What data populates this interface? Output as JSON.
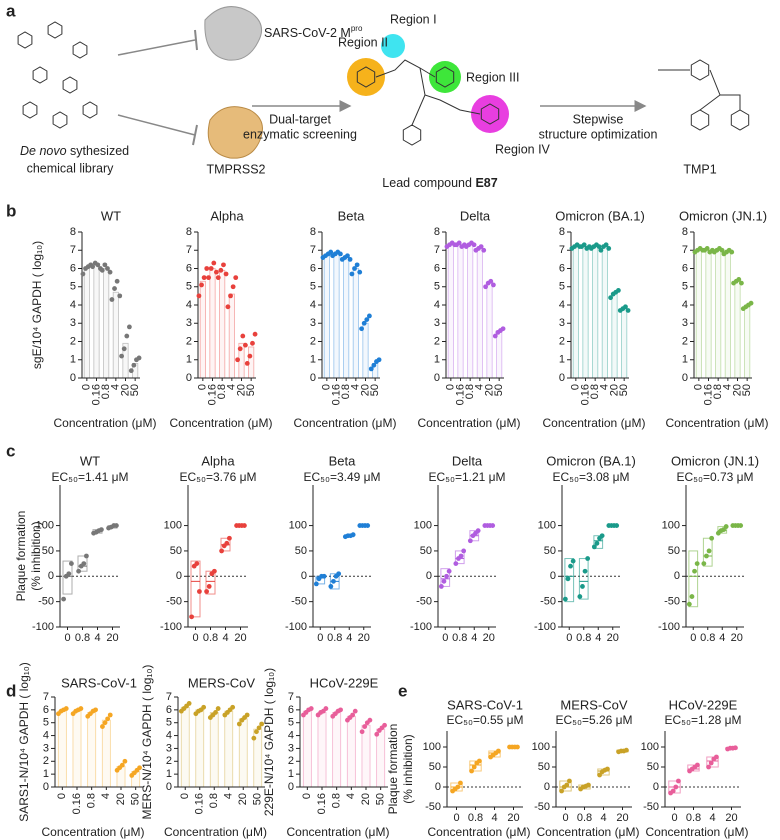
{
  "panel_labels": [
    "a",
    "b",
    "c",
    "d",
    "e"
  ],
  "scheme": {
    "library": [
      "De novo",
      "sythesized",
      "chemical library"
    ],
    "target_1": [
      "SARS-CoV-2 M",
      "pro"
    ],
    "target_2": "TMPRSS2",
    "screening": [
      "Dual-target",
      "enzymatic screening"
    ],
    "regions": [
      "Region I",
      "Region II",
      "Region III",
      "Region IV"
    ],
    "lead": [
      "Lead compound",
      "E87"
    ],
    "optimization": [
      "Stepwise",
      "structure optimization"
    ],
    "product": "TMP1"
  },
  "chart_data": [
    {
      "type": "bar",
      "title": "WT",
      "ylabel": "sgE/10⁴ GAPDH ( log₁₀)",
      "xlabel": "Concentration (μM)",
      "color": "#777777",
      "categories": [
        "0",
        "0.16",
        "0.8",
        "4",
        "20",
        "50"
      ],
      "values": [
        6.0,
        6.2,
        6.0,
        4.7,
        1.9,
        0.8
      ],
      "points": [
        [
          5.7,
          6.0,
          6.1,
          6.2
        ],
        [
          6.1,
          6.3,
          6.2,
          6.0
        ],
        [
          5.9,
          6.2,
          6.0,
          5.8
        ],
        [
          4.3,
          4.9,
          5.3,
          4.5
        ],
        [
          1.2,
          1.6,
          2.3,
          2.8
        ],
        [
          0.4,
          0.7,
          1.0,
          1.1
        ]
      ],
      "ylim": [
        0,
        8
      ],
      "yticks": [
        0,
        1,
        2,
        3,
        4,
        5,
        6,
        7,
        8
      ]
    },
    {
      "type": "bar",
      "title": "Alpha",
      "xlabel": "Concentration (μM)",
      "color": "#e8413c",
      "categories": [
        "0",
        "0.16",
        "0.8",
        "4",
        "20",
        "50"
      ],
      "values": [
        5.3,
        6.0,
        5.9,
        4.6,
        1.9,
        1.7
      ],
      "points": [
        [
          4.5,
          5.1,
          5.5,
          6.0
        ],
        [
          5.5,
          6.0,
          6.3,
          5.8
        ],
        [
          5.5,
          5.9,
          6.2,
          5.7
        ],
        [
          3.9,
          4.5,
          5.0,
          5.5
        ],
        [
          1.0,
          1.6,
          2.3,
          1.8
        ],
        [
          0.8,
          1.2,
          1.9,
          2.4
        ]
      ],
      "ylim": [
        0,
        8
      ],
      "yticks": [
        0,
        1,
        2,
        3,
        4,
        5,
        6,
        7,
        8
      ]
    },
    {
      "type": "bar",
      "title": "Beta",
      "xlabel": "Concentration (μM)",
      "color": "#1f7fd6",
      "categories": [
        "0",
        "0.16",
        "0.8",
        "4",
        "20",
        "50"
      ],
      "values": [
        6.7,
        6.8,
        6.6,
        6.0,
        3.0,
        0.8
      ],
      "points": [
        [
          6.6,
          6.7,
          6.8,
          6.9
        ],
        [
          6.7,
          6.8,
          6.9,
          6.8
        ],
        [
          6.5,
          6.6,
          6.7,
          6.5
        ],
        [
          5.7,
          6.0,
          6.2,
          5.8
        ],
        [
          2.7,
          3.0,
          3.2,
          3.4
        ],
        [
          0.5,
          0.7,
          0.9,
          1.0
        ]
      ],
      "ylim": [
        0,
        8
      ],
      "yticks": [
        0,
        1,
        2,
        3,
        4,
        5,
        6,
        7,
        8
      ]
    },
    {
      "type": "bar",
      "title": "Delta",
      "xlabel": "Concentration (μM)",
      "color": "#b05de0",
      "categories": [
        "0",
        "0.16",
        "0.8",
        "4",
        "20",
        "50"
      ],
      "values": [
        7.3,
        7.3,
        7.3,
        7.1,
        5.2,
        2.5
      ],
      "points": [
        [
          7.2,
          7.3,
          7.4,
          7.3
        ],
        [
          7.3,
          7.4,
          7.2,
          7.3
        ],
        [
          7.2,
          7.3,
          7.4,
          7.3
        ],
        [
          7.0,
          7.1,
          7.2,
          7.0
        ],
        [
          5.0,
          5.2,
          5.3,
          5.1
        ],
        [
          2.3,
          2.5,
          2.6,
          2.7
        ]
      ],
      "ylim": [
        0,
        8
      ],
      "yticks": [
        0,
        1,
        2,
        3,
        4,
        5,
        6,
        7,
        8
      ]
    },
    {
      "type": "bar",
      "title": "Omicron (BA.1)",
      "xlabel": "Concentration (μM)",
      "color": "#1a9a8a",
      "categories": [
        "0",
        "0.16",
        "0.8",
        "4",
        "20",
        "50"
      ],
      "values": [
        7.2,
        7.2,
        7.2,
        7.2,
        4.6,
        3.8
      ],
      "points": [
        [
          7.1,
          7.2,
          7.3,
          7.2
        ],
        [
          7.2,
          7.3,
          7.1,
          7.2
        ],
        [
          7.1,
          7.2,
          7.3,
          7.2
        ],
        [
          7.0,
          7.2,
          7.3,
          7.1
        ],
        [
          4.4,
          4.6,
          4.7,
          4.8
        ],
        [
          3.7,
          3.8,
          3.9,
          3.7
        ]
      ],
      "ylim": [
        0,
        8
      ],
      "yticks": [
        0,
        1,
        2,
        3,
        4,
        5,
        6,
        7,
        8
      ]
    },
    {
      "type": "bar",
      "title": "Omicron (JN.1)",
      "xlabel": "Concentration (μM)",
      "color": "#7ab648",
      "categories": [
        "0",
        "0.16",
        "0.8",
        "4",
        "20",
        "50"
      ],
      "values": [
        7.0,
        7.0,
        7.0,
        6.9,
        5.3,
        3.9
      ],
      "points": [
        [
          6.9,
          7.0,
          7.1,
          7.0
        ],
        [
          7.0,
          7.1,
          6.9,
          7.0
        ],
        [
          6.9,
          7.0,
          7.1,
          7.0
        ],
        [
          6.8,
          6.9,
          7.0,
          6.9
        ],
        [
          5.2,
          5.3,
          5.4,
          5.2
        ],
        [
          3.8,
          3.9,
          4.0,
          4.1
        ]
      ],
      "ylim": [
        0,
        8
      ],
      "yticks": [
        0,
        1,
        2,
        3,
        4,
        5,
        6,
        7,
        8
      ]
    },
    {
      "type": "box",
      "title": "WT",
      "annotation": "EC₅₀=1.41 μM",
      "ylabel": [
        "Plaque formation",
        "(% inhibition)"
      ],
      "color": "#777777",
      "categories": [
        "0",
        "0.8",
        "4",
        "20"
      ],
      "boxes": [
        [
          -35,
          0,
          30
        ],
        [
          10,
          20,
          40
        ],
        [
          85,
          88,
          92
        ],
        [
          95,
          98,
          100
        ]
      ],
      "points": [
        [
          -45,
          0,
          5,
          25
        ],
        [
          10,
          20,
          25,
          40
        ],
        [
          85,
          87,
          90,
          92
        ],
        [
          95,
          97,
          100,
          100
        ]
      ],
      "ylim": [
        -100,
        180
      ],
      "yticks": [
        -100,
        -50,
        0,
        50,
        100
      ]
    },
    {
      "type": "box",
      "title": "Alpha",
      "annotation": "EC₅₀=3.76 μM",
      "color": "#e8413c",
      "categories": [
        "0",
        "0.8",
        "4",
        "20"
      ],
      "boxes": [
        [
          -80,
          -10,
          30
        ],
        [
          -35,
          -10,
          10
        ],
        [
          50,
          62,
          75
        ],
        [
          100,
          100,
          100
        ]
      ],
      "points": [
        [
          -80,
          20,
          25,
          -30
        ],
        [
          -30,
          -20,
          5,
          10
        ],
        [
          50,
          60,
          65,
          75
        ],
        [
          100,
          100,
          100,
          100
        ]
      ],
      "ylim": [
        -100,
        180
      ],
      "yticks": [
        -100,
        -50,
        0,
        50,
        100
      ]
    },
    {
      "type": "box",
      "title": "Beta",
      "annotation": "EC₅₀=3.49 μM",
      "color": "#1f7fd6",
      "categories": [
        "0",
        "0.8",
        "4",
        "20"
      ],
      "boxes": [
        [
          -15,
          -3,
          0
        ],
        [
          -25,
          -10,
          5
        ],
        [
          78,
          80,
          82
        ],
        [
          100,
          100,
          100
        ]
      ],
      "points": [
        [
          -15,
          -5,
          0,
          0
        ],
        [
          -20,
          -10,
          0,
          5
        ],
        [
          78,
          80,
          80,
          82
        ],
        [
          100,
          100,
          100,
          100
        ]
      ],
      "ylim": [
        -100,
        180
      ],
      "yticks": [
        -100,
        -50,
        0,
        50,
        100
      ]
    },
    {
      "type": "box",
      "title": "Delta",
      "annotation": "EC₅₀=1.21 μM",
      "color": "#b05de0",
      "categories": [
        "0",
        "0.8",
        "4",
        "20"
      ],
      "boxes": [
        [
          -20,
          -5,
          15
        ],
        [
          25,
          35,
          50
        ],
        [
          70,
          80,
          90
        ],
        [
          100,
          100,
          100
        ]
      ],
      "points": [
        [
          -20,
          -10,
          0,
          10
        ],
        [
          25,
          35,
          40,
          50
        ],
        [
          70,
          80,
          85,
          90
        ],
        [
          100,
          100,
          100,
          100
        ]
      ],
      "ylim": [
        -100,
        180
      ],
      "yticks": [
        -100,
        -50,
        0,
        50,
        100
      ]
    },
    {
      "type": "box",
      "title": "Omicron (BA.1)",
      "annotation": "EC₅₀=3.08 μM",
      "color": "#1a9a8a",
      "categories": [
        "0",
        "0.8",
        "4",
        "20"
      ],
      "boxes": [
        [
          -50,
          0,
          35
        ],
        [
          -45,
          -10,
          35
        ],
        [
          55,
          70,
          80
        ],
        [
          100,
          100,
          100
        ]
      ],
      "points": [
        [
          -45,
          -5,
          20,
          30
        ],
        [
          -40,
          -20,
          10,
          35
        ],
        [
          58,
          65,
          75,
          80
        ],
        [
          100,
          100,
          100,
          100
        ]
      ],
      "ylim": [
        -100,
        180
      ],
      "yticks": [
        -100,
        -50,
        0,
        50,
        100
      ]
    },
    {
      "type": "box",
      "title": "Omicron (JN.1)",
      "annotation": "EC₅₀=0.73 μM",
      "color": "#7ab648",
      "categories": [
        "0",
        "0.8",
        "4",
        "20"
      ],
      "boxes": [
        [
          -60,
          0,
          50
        ],
        [
          20,
          40,
          75
        ],
        [
          85,
          90,
          98
        ],
        [
          100,
          100,
          100
        ]
      ],
      "points": [
        [
          -55,
          -40,
          10,
          25
        ],
        [
          25,
          40,
          50,
          75
        ],
        [
          85,
          90,
          92,
          98
        ],
        [
          100,
          100,
          100,
          100
        ]
      ],
      "ylim": [
        -100,
        180
      ],
      "yticks": [
        -100,
        -50,
        0,
        50,
        100
      ]
    },
    {
      "type": "bar",
      "title": "SARS-CoV-1",
      "ylabel": "SARS1-N/10⁴ GAPDH ( log₁₀)",
      "xlabel": "Concentration (μM)",
      "color": "#f5a623",
      "categories": [
        "0",
        "0.16",
        "0.8",
        "4",
        "20",
        "50"
      ],
      "values": [
        5.9,
        5.9,
        5.8,
        5.2,
        1.6,
        1.2
      ],
      "points": [
        [
          5.7,
          5.9,
          6.0,
          6.1
        ],
        [
          5.7,
          5.9,
          6.0,
          6.1
        ],
        [
          5.5,
          5.7,
          5.9,
          6.0
        ],
        [
          4.7,
          5.0,
          5.3,
          5.6
        ],
        [
          1.3,
          1.5,
          1.7,
          2.0
        ],
        [
          0.9,
          1.1,
          1.3,
          1.5
        ]
      ],
      "ylim": [
        0,
        7
      ],
      "yticks": [
        0,
        1,
        2,
        3,
        4,
        5,
        6,
        7
      ]
    },
    {
      "type": "bar",
      "title": "MERS-CoV",
      "ylabel": "MERS-N/10⁴ GAPDH ( log₁₀)",
      "xlabel": "Concentration (μM)",
      "color": "#c9a227",
      "categories": [
        "0",
        "0.16",
        "0.8",
        "4",
        "20",
        "50"
      ],
      "values": [
        6.2,
        6.0,
        5.8,
        5.9,
        5.3,
        4.5
      ],
      "points": [
        [
          5.9,
          6.1,
          6.3,
          6.5
        ],
        [
          5.7,
          5.9,
          6.0,
          6.2
        ],
        [
          5.4,
          5.6,
          5.8,
          6.1
        ],
        [
          5.6,
          5.8,
          6.0,
          6.2
        ],
        [
          4.9,
          5.2,
          5.4,
          5.6
        ],
        [
          3.8,
          4.3,
          4.6,
          4.9
        ]
      ],
      "ylim": [
        0,
        7
      ],
      "yticks": [
        0,
        1,
        2,
        3,
        4,
        5,
        6,
        7
      ]
    },
    {
      "type": "bar",
      "title": "HCoV-229E",
      "ylabel": "229E-N/10⁴ GAPDH ( log₁₀)",
      "xlabel": "Concentration (μM)",
      "color": "#e85e9a",
      "categories": [
        "0",
        "0.16",
        "0.8",
        "4",
        "20",
        "50"
      ],
      "values": [
        5.9,
        5.8,
        5.8,
        5.5,
        4.8,
        4.5
      ],
      "points": [
        [
          5.6,
          5.8,
          6.0,
          6.1
        ],
        [
          5.6,
          5.8,
          5.9,
          6.1
        ],
        [
          5.5,
          5.7,
          5.9,
          6.0
        ],
        [
          5.2,
          5.4,
          5.6,
          5.9
        ],
        [
          4.3,
          4.7,
          5.0,
          5.2
        ],
        [
          4.1,
          4.4,
          4.6,
          4.8
        ]
      ],
      "ylim": [
        0,
        7
      ],
      "yticks": [
        0,
        1,
        2,
        3,
        4,
        5,
        6,
        7
      ]
    },
    {
      "type": "box",
      "title": "SARS-CoV-1",
      "annotation": "EC₅₀=0.55 μM",
      "ylabel": [
        "Plaque formation",
        "(% inhibition)"
      ],
      "xlabel": "Concentration (μM)",
      "color": "#f5a623",
      "categories": [
        "0",
        "0.8",
        "4",
        "20"
      ],
      "boxes": [
        [
          -10,
          0,
          10
        ],
        [
          40,
          55,
          65
        ],
        [
          75,
          85,
          90
        ],
        [
          100,
          100,
          100
        ]
      ],
      "points": [
        [
          -10,
          -5,
          0,
          10
        ],
        [
          40,
          50,
          60,
          65
        ],
        [
          75,
          80,
          85,
          90
        ],
        [
          100,
          100,
          100,
          100
        ]
      ],
      "ylim": [
        -50,
        140
      ],
      "yticks": [
        -50,
        0,
        50,
        100
      ]
    },
    {
      "type": "box",
      "title": "MERS-CoV",
      "annotation": "EC₅₀=5.26 μM",
      "xlabel": "Concentration (μM)",
      "color": "#c9a227",
      "categories": [
        "0",
        "0.8",
        "4",
        "20"
      ],
      "boxes": [
        [
          -10,
          0,
          15
        ],
        [
          -5,
          0,
          5
        ],
        [
          30,
          40,
          45
        ],
        [
          88,
          90,
          92
        ]
      ],
      "points": [
        [
          -10,
          0,
          5,
          15
        ],
        [
          -5,
          0,
          2,
          5
        ],
        [
          30,
          38,
          42,
          45
        ],
        [
          88,
          90,
          90,
          92
        ]
      ],
      "ylim": [
        -50,
        140
      ],
      "yticks": [
        -50,
        0,
        50,
        100
      ]
    },
    {
      "type": "box",
      "title": "HCoV-229E",
      "annotation": "EC₅₀=1.28 μM",
      "xlabel": "Concentration (μM)",
      "color": "#e85e9a",
      "categories": [
        "0",
        "0.8",
        "4",
        "20"
      ],
      "boxes": [
        [
          -15,
          0,
          15
        ],
        [
          40,
          45,
          55
        ],
        [
          50,
          65,
          75
        ],
        [
          95,
          97,
          98
        ]
      ],
      "points": [
        [
          -15,
          -10,
          0,
          15
        ],
        [
          40,
          45,
          50,
          55
        ],
        [
          50,
          60,
          70,
          75
        ],
        [
          95,
          97,
          97,
          98
        ]
      ],
      "ylim": [
        -50,
        140
      ],
      "yticks": [
        -50,
        0,
        50,
        100
      ]
    }
  ]
}
